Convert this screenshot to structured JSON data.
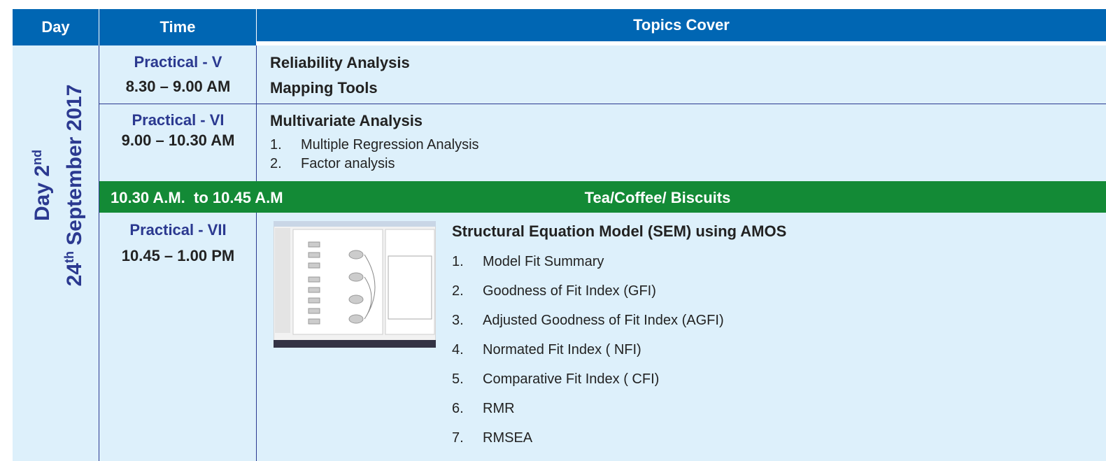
{
  "header": {
    "day": "Day",
    "time": "Time",
    "topics": "Topics Cover"
  },
  "day": {
    "label": "Day 2",
    "label_sup": "nd",
    "date_day": "24",
    "date_sup": "th",
    "date_rest": " September 2017"
  },
  "sessions": [
    {
      "name": "Practical - V",
      "time": "8.30 – 9.00 AM",
      "topics": [
        "Reliability Analysis",
        "Mapping Tools"
      ]
    },
    {
      "name": "Practical - VI",
      "time": "9.00 – 10.30 AM",
      "title": "Multivariate Analysis",
      "items": [
        {
          "num": "1.",
          "text": "Multiple Regression Analysis"
        },
        {
          "num": "2.",
          "text": "Factor analysis"
        }
      ]
    },
    {
      "name": "Practical - VII",
      "time": "10.45 – 1.00 PM",
      "title": "Structural Equation Model (SEM) using AMOS",
      "items": [
        {
          "num": "1.",
          "text": "Model Fit Summary"
        },
        {
          "num": "2.",
          "text": "Goodness of Fit Index (GFI)"
        },
        {
          "num": "3.",
          "text": "Adjusted Goodness of Fit Index (AGFI)"
        },
        {
          "num": "4.",
          "text": "Normated Fit Index ( NFI)"
        },
        {
          "num": "5.",
          "text": "Comparative Fit Index ( CFI)"
        },
        {
          "num": "6.",
          "text": "RMR"
        },
        {
          "num": "7.",
          "text": "RMSEA"
        }
      ]
    }
  ],
  "break": {
    "time": "10.30 A.M.  to 10.45 A.M",
    "label": "Tea/Coffee/ Biscuits"
  }
}
